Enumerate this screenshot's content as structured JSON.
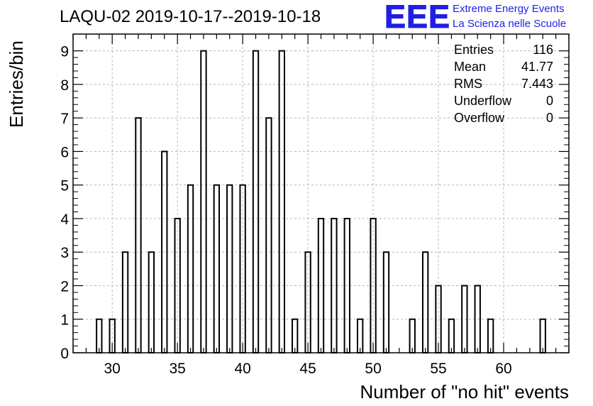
{
  "title": "LAQU-02 2019-10-17--2019-10-18",
  "logo": {
    "mark": "EEE",
    "line1": "Extreme Energy Events",
    "line2": "La Scienza nelle Scuole"
  },
  "stats": [
    {
      "label": "Entries",
      "value": "116"
    },
    {
      "label": "Mean",
      "value": "41.77"
    },
    {
      "label": "RMS",
      "value": "7.443"
    },
    {
      "label": "Underflow",
      "value": "0"
    },
    {
      "label": "Overflow",
      "value": "0"
    }
  ],
  "chart_data": {
    "type": "bar",
    "title": "LAQU-02 2019-10-17--2019-10-18",
    "xlabel": "Number of \"no hit\" events",
    "ylabel": "Entries/bin",
    "xlim": [
      27,
      65
    ],
    "ylim": [
      0,
      9.5
    ],
    "grid": true,
    "xticks": [
      30,
      35,
      40,
      45,
      50,
      55,
      60
    ],
    "yticks": [
      0,
      1,
      2,
      3,
      4,
      5,
      6,
      7,
      8,
      9
    ],
    "bin_width": 1,
    "bins": [
      {
        "x": 29,
        "count": 1
      },
      {
        "x": 30,
        "count": 1
      },
      {
        "x": 31,
        "count": 3
      },
      {
        "x": 32,
        "count": 7
      },
      {
        "x": 33,
        "count": 3
      },
      {
        "x": 34,
        "count": 6
      },
      {
        "x": 35,
        "count": 4
      },
      {
        "x": 36,
        "count": 5
      },
      {
        "x": 37,
        "count": 9
      },
      {
        "x": 38,
        "count": 5
      },
      {
        "x": 39,
        "count": 5
      },
      {
        "x": 40,
        "count": 5
      },
      {
        "x": 41,
        "count": 9
      },
      {
        "x": 42,
        "count": 7
      },
      {
        "x": 43,
        "count": 9
      },
      {
        "x": 44,
        "count": 1
      },
      {
        "x": 45,
        "count": 3
      },
      {
        "x": 46,
        "count": 4
      },
      {
        "x": 47,
        "count": 4
      },
      {
        "x": 48,
        "count": 4
      },
      {
        "x": 49,
        "count": 1
      },
      {
        "x": 50,
        "count": 4
      },
      {
        "x": 51,
        "count": 3
      },
      {
        "x": 53,
        "count": 1
      },
      {
        "x": 54,
        "count": 3
      },
      {
        "x": 55,
        "count": 2
      },
      {
        "x": 56,
        "count": 1
      },
      {
        "x": 57,
        "count": 2
      },
      {
        "x": 58,
        "count": 2
      },
      {
        "x": 59,
        "count": 1
      },
      {
        "x": 63,
        "count": 1
      }
    ]
  }
}
